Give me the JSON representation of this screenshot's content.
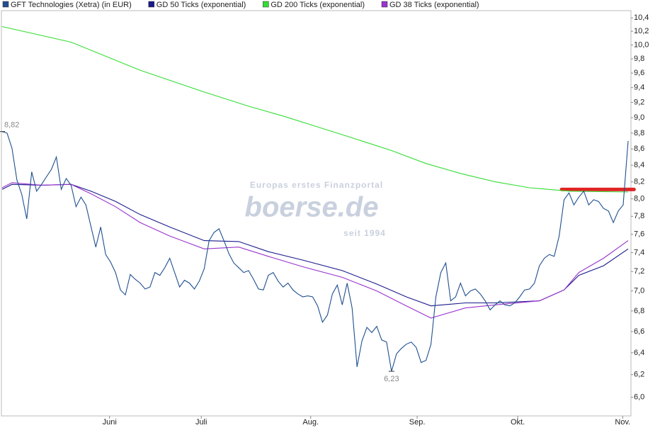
{
  "chart_data": {
    "type": "line",
    "log_y": true,
    "grid": false,
    "xlim": [
      0,
      127
    ],
    "ylim": [
      5.84,
      10.51
    ],
    "xticks": [
      {
        "value": 21.8,
        "label": "Juni"
      },
      {
        "value": 40.4,
        "label": "Juli"
      },
      {
        "value": 62.6,
        "label": "Aug."
      },
      {
        "value": 84.2,
        "label": "Sep."
      },
      {
        "value": 104.6,
        "label": "Okt."
      },
      {
        "value": 125.9,
        "label": "Nov."
      }
    ],
    "yticks": [
      {
        "value": 6.0,
        "label": "6,0"
      },
      {
        "value": 6.2,
        "label": "6,2"
      },
      {
        "value": 6.4,
        "label": "6,4"
      },
      {
        "value": 6.6,
        "label": "6,6"
      },
      {
        "value": 6.8,
        "label": "6,8"
      },
      {
        "value": 7.0,
        "label": "7,0"
      },
      {
        "value": 7.2,
        "label": "7,2"
      },
      {
        "value": 7.4,
        "label": "7,4"
      },
      {
        "value": 7.6,
        "label": "7,6"
      },
      {
        "value": 7.8,
        "label": "7,8"
      },
      {
        "value": 8.0,
        "label": "8,0"
      },
      {
        "value": 8.2,
        "label": "8,2"
      },
      {
        "value": 8.4,
        "label": "8,4"
      },
      {
        "value": 8.6,
        "label": "8,6"
      },
      {
        "value": 8.8,
        "label": "8,8"
      },
      {
        "value": 9.0,
        "label": "9,0"
      },
      {
        "value": 9.2,
        "label": "9,2"
      },
      {
        "value": 9.4,
        "label": "9,4"
      },
      {
        "value": 9.6,
        "label": "9,6"
      },
      {
        "value": 9.8,
        "label": "9,8"
      },
      {
        "value": 10.0,
        "label": "10,0"
      },
      {
        "value": 10.2,
        "label": "10,2"
      },
      {
        "value": 10.4,
        "label": "10,4"
      }
    ],
    "series": [
      {
        "name": "GFT Technologies (Xetra) (in EUR)",
        "color": "#1f4f8f",
        "values": [
          8.82,
          8.8,
          8.61,
          8.22,
          8.05,
          7.77,
          8.32,
          8.09,
          8.17,
          8.26,
          8.35,
          8.5,
          8.11,
          8.24,
          8.16,
          7.91,
          8.02,
          7.93,
          7.69,
          7.46,
          7.68,
          7.38,
          7.3,
          7.19,
          7.01,
          6.96,
          7.17,
          7.12,
          7.08,
          7.02,
          7.04,
          7.19,
          7.16,
          7.24,
          7.34,
          7.19,
          7.04,
          7.11,
          7.08,
          7.02,
          7.1,
          7.23,
          7.53,
          7.62,
          7.66,
          7.53,
          7.39,
          7.29,
          7.24,
          7.19,
          7.21,
          7.12,
          7.02,
          7.01,
          7.16,
          7.19,
          7.1,
          7.04,
          7.08,
          7.01,
          6.97,
          6.94,
          6.95,
          6.94,
          6.85,
          6.69,
          6.76,
          6.97,
          7.06,
          6.86,
          7.08,
          6.83,
          6.27,
          6.51,
          6.64,
          6.59,
          6.65,
          6.52,
          6.5,
          6.23,
          6.39,
          6.44,
          6.48,
          6.5,
          6.45,
          6.31,
          6.33,
          6.48,
          6.94,
          7.19,
          7.29,
          6.9,
          6.94,
          7.08,
          6.95,
          7.0,
          7.02,
          6.97,
          6.9,
          6.81,
          6.86,
          6.9,
          6.86,
          6.85,
          6.88,
          6.94,
          7.01,
          7.02,
          7.08,
          7.26,
          7.34,
          7.38,
          7.36,
          7.58,
          7.99,
          8.07,
          7.93,
          8.02,
          8.09,
          7.93,
          7.99,
          7.97,
          7.89,
          7.86,
          7.73,
          7.86,
          7.93,
          8.7
        ]
      },
      {
        "name": "GD 50 Ticks (exponential)",
        "color": "#1a1a8c",
        "x": [
          0,
          2,
          8,
          14,
          18,
          23,
          28,
          34,
          41,
          48,
          54,
          61,
          69,
          76,
          82,
          87,
          94,
          100,
          109,
          114,
          117,
          122,
          127
        ],
        "values": [
          8.11,
          8.17,
          8.16,
          8.17,
          8.09,
          7.97,
          7.82,
          7.68,
          7.53,
          7.52,
          7.41,
          7.32,
          7.21,
          7.07,
          6.94,
          6.85,
          6.88,
          6.88,
          6.9,
          7.01,
          7.16,
          7.26,
          7.44
        ]
      },
      {
        "name": "GD 200 Ticks (exponential)",
        "color": "#33dd33",
        "x": [
          0,
          14,
          28,
          41,
          50,
          57,
          64,
          71,
          79,
          86,
          93,
          100,
          107,
          115,
          127
        ],
        "values": [
          10.27,
          10.04,
          9.64,
          9.34,
          9.15,
          9.02,
          8.88,
          8.74,
          8.58,
          8.42,
          8.3,
          8.2,
          8.13,
          8.09,
          8.08
        ]
      },
      {
        "name": "GD 38 Ticks (exponential)",
        "color": "#9933cc",
        "x": [
          0,
          2,
          8,
          14,
          18,
          23,
          28,
          34,
          41,
          48,
          54,
          61,
          69,
          76,
          82,
          87,
          94,
          100,
          109,
          114,
          117,
          122,
          127
        ],
        "values": [
          8.13,
          8.19,
          8.16,
          8.17,
          8.06,
          7.91,
          7.73,
          7.58,
          7.44,
          7.46,
          7.36,
          7.25,
          7.14,
          7.0,
          6.85,
          6.73,
          6.83,
          6.86,
          6.9,
          7.01,
          7.19,
          7.34,
          7.53
        ]
      }
    ],
    "annotations": [
      {
        "x": 0,
        "value": 8.82,
        "label": "8,82"
      },
      {
        "x": 79,
        "value": 6.23,
        "label": "6,23"
      }
    ],
    "resistance": {
      "value": 8.11,
      "x": [
        113.5,
        128.2
      ],
      "color": "#e02424"
    }
  },
  "watermark": {
    "tagline": "Europas erstes Finanzportal",
    "brand": "boerse.de",
    "since": "seit 1994"
  }
}
